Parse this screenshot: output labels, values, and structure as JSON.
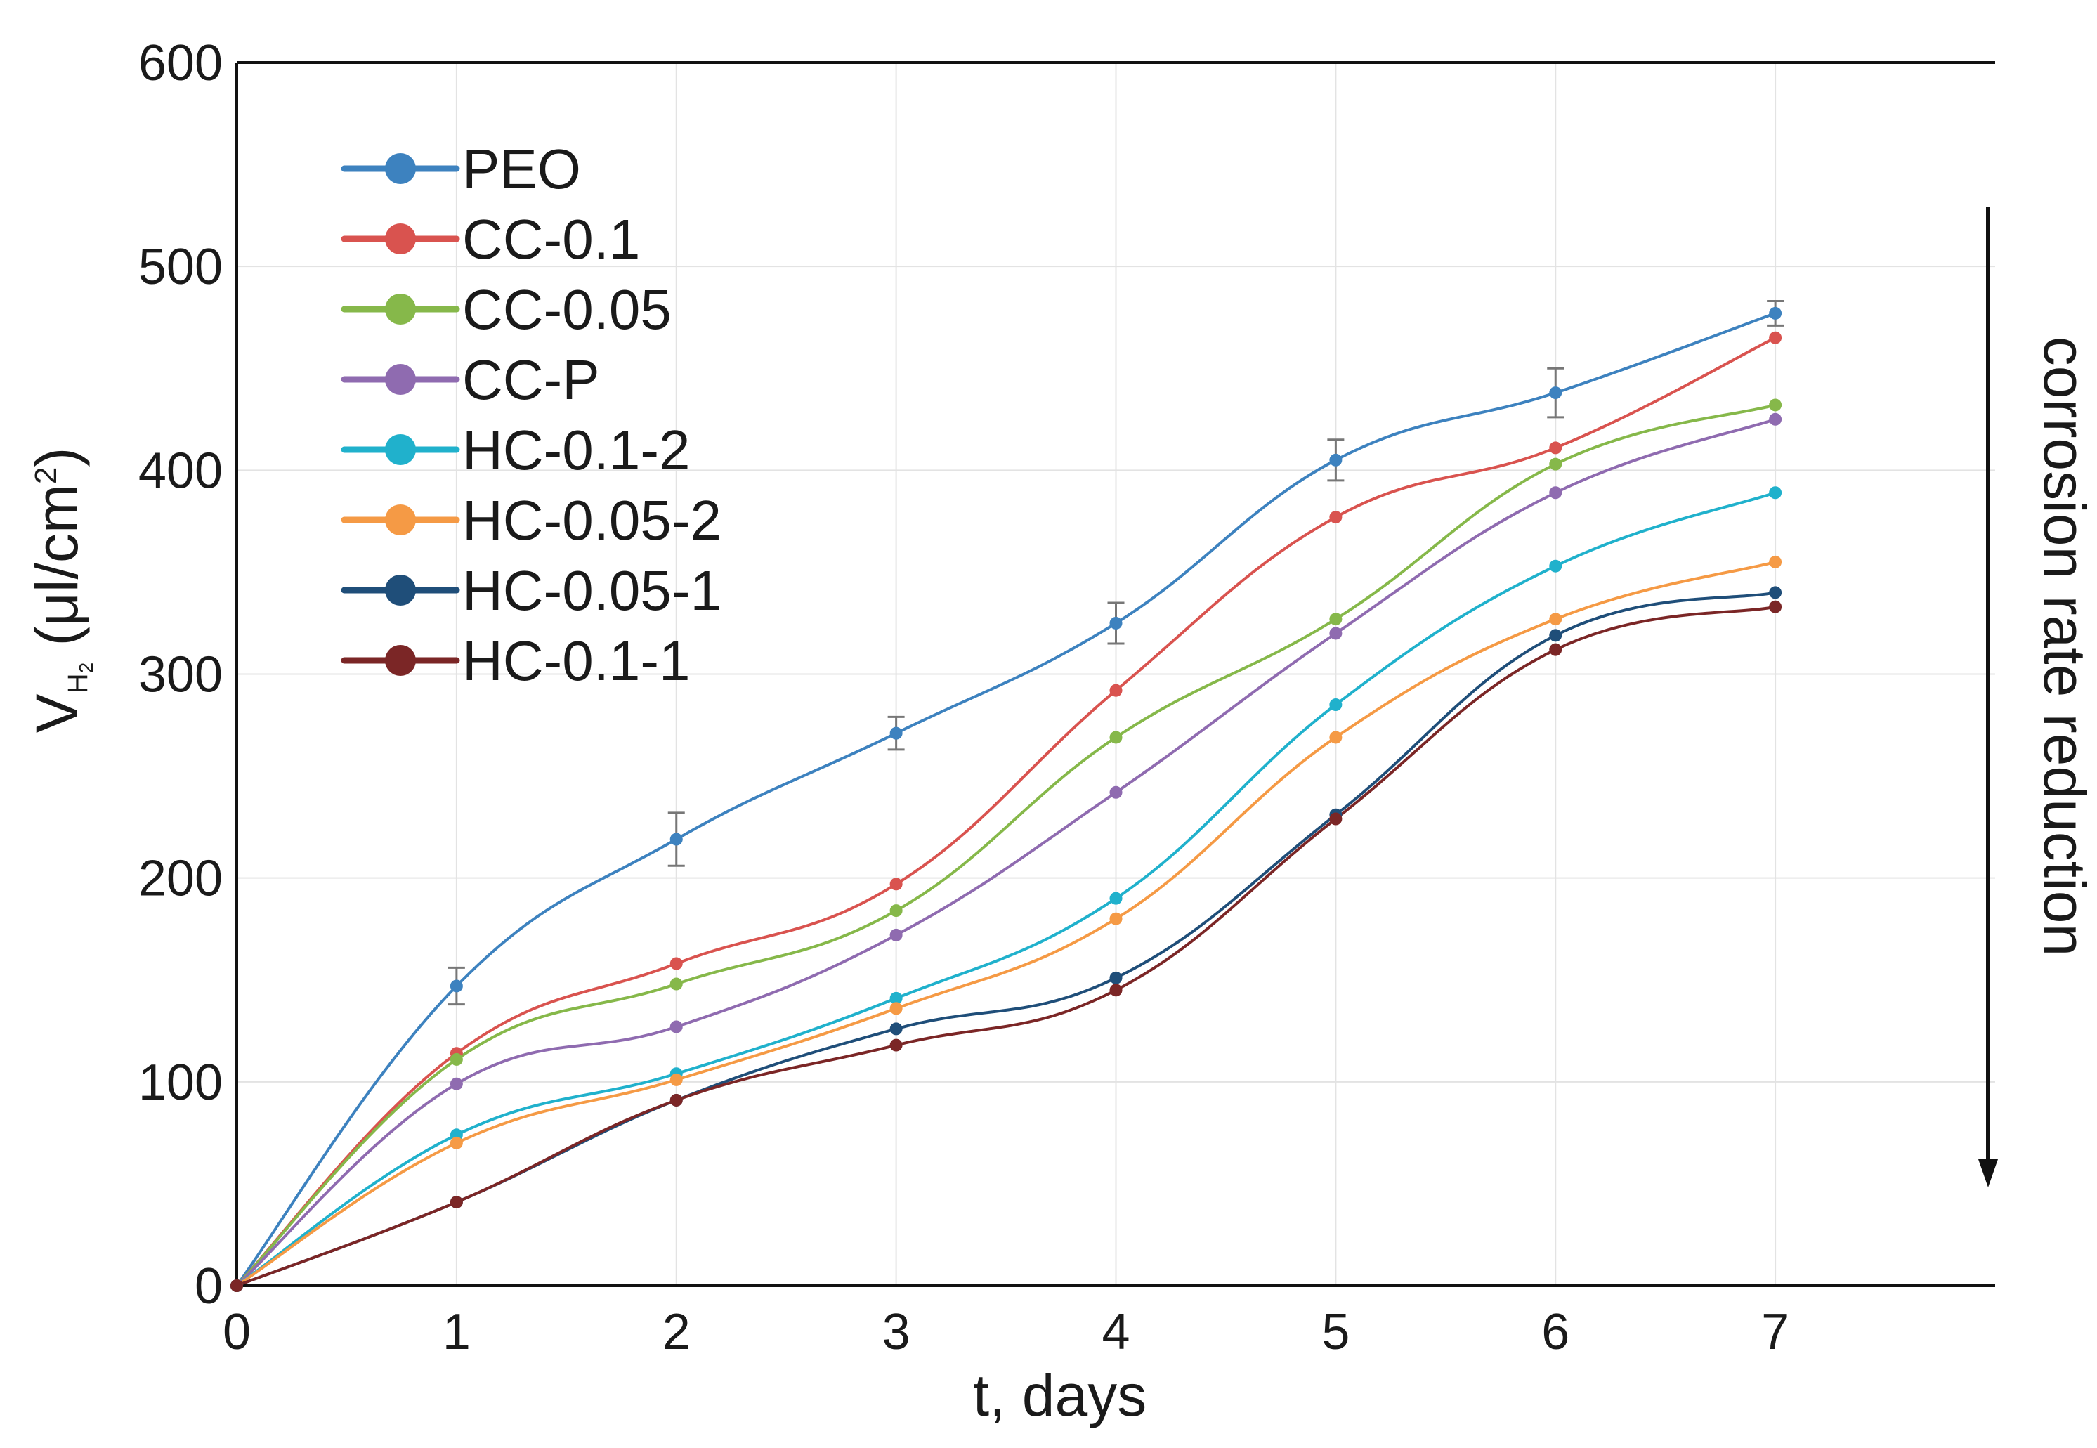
{
  "chart_data": {
    "type": "line",
    "title": "",
    "xlabel": "t, days",
    "ylabel": {
      "main": "V",
      "sub_main": "H",
      "sub_sub": "2",
      "unit_open": " (μl/cm",
      "unit_sup": "2",
      "unit_close": ")"
    },
    "xlim": [
      0,
      8
    ],
    "ylim": [
      0,
      600
    ],
    "xticks": [
      0,
      1,
      2,
      3,
      4,
      5,
      6,
      7
    ],
    "yticks": [
      0,
      100,
      200,
      300,
      400,
      500,
      600
    ],
    "grid": true,
    "legend_position": "top-left",
    "annotation": "corrosion rate reduction",
    "x": [
      0,
      1,
      2,
      3,
      4,
      5,
      6,
      7
    ],
    "series": [
      {
        "name": "PEO",
        "color": "#3d82bf",
        "values": [
          0,
          147,
          219,
          271,
          325,
          405,
          438,
          477
        ],
        "error": [
          0,
          9,
          13,
          8,
          10,
          10,
          12,
          6
        ]
      },
      {
        "name": "CC-0.1",
        "color": "#d9534f",
        "values": [
          0,
          114,
          158,
          197,
          292,
          377,
          411,
          465
        ]
      },
      {
        "name": "CC-0.05",
        "color": "#86b84a",
        "values": [
          0,
          111,
          148,
          184,
          269,
          327,
          403,
          432
        ]
      },
      {
        "name": "CC-P",
        "color": "#8f6bb0",
        "values": [
          0,
          99,
          127,
          172,
          242,
          320,
          389,
          425
        ]
      },
      {
        "name": "HC-0.1-2",
        "color": "#20b1cc",
        "values": [
          0,
          74,
          104,
          141,
          190,
          285,
          353,
          389
        ]
      },
      {
        "name": "HC-0.05-2",
        "color": "#f59a45",
        "values": [
          0,
          70,
          101,
          136,
          180,
          269,
          327,
          355
        ]
      },
      {
        "name": "HC-0.05-1",
        "color": "#1f4e79",
        "values": [
          0,
          41,
          91,
          126,
          151,
          231,
          319,
          340
        ]
      },
      {
        "name": "HC-0.1-1",
        "color": "#7b2626",
        "values": [
          0,
          41,
          91,
          118,
          145,
          229,
          312,
          333
        ]
      }
    ]
  }
}
